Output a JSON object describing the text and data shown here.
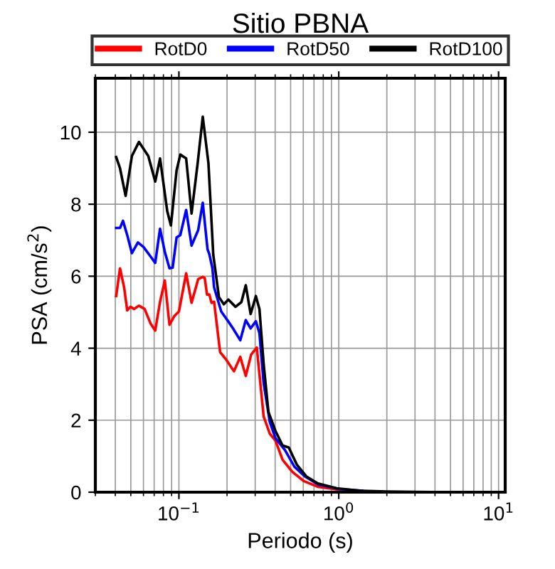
{
  "chart_data": {
    "type": "line",
    "title": "Sitio PBNA",
    "xlabel": "Periodo (s)",
    "ylabel": "PSA (cm/s$^{2}$)",
    "log": "x",
    "xlim": [
      0.03,
      11
    ],
    "ylim": [
      0,
      11.5
    ],
    "xticks": [
      {
        "value": 0.1,
        "label": "10$^{−1}$"
      },
      {
        "value": 1,
        "label": "10$^{0}$"
      },
      {
        "value": 10,
        "label": "10$^{1}$"
      }
    ],
    "yticks": [
      0,
      2,
      4,
      6,
      8,
      10
    ],
    "grid": true,
    "legend": "top",
    "line_style": "solid",
    "marker": "none",
    "series": [
      {
        "name": "RotD0",
        "color": "#ff0000",
        "x": [
          0.0405,
          0.0428,
          0.0454,
          0.0475,
          0.0497,
          0.0524,
          0.0562,
          0.061,
          0.0664,
          0.0711,
          0.0762,
          0.0816,
          0.0873,
          0.0935,
          0.1,
          0.111,
          0.12,
          0.132,
          0.141,
          0.145,
          0.15,
          0.155,
          0.16,
          0.166,
          0.181,
          0.197,
          0.221,
          0.242,
          0.262,
          0.283,
          0.307,
          0.339,
          0.37,
          0.402,
          0.445,
          0.511,
          0.604,
          0.74,
          1.0,
          1.4
        ],
        "values": [
          5.45,
          6.22,
          5.69,
          5.05,
          5.15,
          5.09,
          5.18,
          5.09,
          4.69,
          4.49,
          5.29,
          5.88,
          4.65,
          4.89,
          5.02,
          6.08,
          5.26,
          5.92,
          5.98,
          5.95,
          5.49,
          5.49,
          5.26,
          5.29,
          3.89,
          3.69,
          3.36,
          3.76,
          3.23,
          3.82,
          4.02,
          2.1,
          1.63,
          1.43,
          0.9,
          0.57,
          0.31,
          0.15,
          0.07,
          0.03
        ]
      },
      {
        "name": "RotD50",
        "color": "#0000ff",
        "x": [
          0.0405,
          0.0428,
          0.0447,
          0.0475,
          0.0508,
          0.0554,
          0.0601,
          0.0664,
          0.0711,
          0.0762,
          0.0816,
          0.0873,
          0.0914,
          0.0967,
          0.102,
          0.111,
          0.12,
          0.132,
          0.141,
          0.151,
          0.155,
          0.162,
          0.166,
          0.184,
          0.201,
          0.218,
          0.242,
          0.262,
          0.281,
          0.303,
          0.319,
          0.339,
          0.37,
          0.402,
          0.461,
          0.528,
          0.613,
          0.74,
          1.0,
          1.4
        ],
        "values": [
          7.34,
          7.34,
          7.54,
          7.14,
          6.64,
          6.94,
          6.81,
          6.55,
          6.37,
          7.32,
          6.68,
          6.22,
          6.24,
          7.08,
          7.14,
          7.84,
          6.85,
          7.28,
          8.04,
          6.75,
          6.61,
          6.22,
          5.69,
          5.02,
          4.78,
          4.55,
          4.22,
          4.78,
          4.55,
          4.75,
          4.42,
          3.03,
          1.96,
          1.5,
          1.17,
          0.71,
          0.44,
          0.22,
          0.09,
          0.04
        ]
      },
      {
        "name": "RotD100",
        "color": "#000000",
        "x": [
          0.0405,
          0.0428,
          0.0464,
          0.0508,
          0.0562,
          0.0643,
          0.0711,
          0.0762,
          0.0845,
          0.0891,
          0.0967,
          0.102,
          0.111,
          0.12,
          0.131,
          0.141,
          0.153,
          0.164,
          0.178,
          0.191,
          0.204,
          0.226,
          0.246,
          0.262,
          0.281,
          0.303,
          0.319,
          0.339,
          0.363,
          0.402,
          0.445,
          0.487,
          0.546,
          0.626,
          0.741,
          0.97,
          1.37,
          2.0,
          3.0,
          5.0,
          10.0
        ],
        "values": [
          9.31,
          9.0,
          8.23,
          9.34,
          9.73,
          9.34,
          8.63,
          9.27,
          7.81,
          7.41,
          8.94,
          9.38,
          9.27,
          7.74,
          9.14,
          10.43,
          9.14,
          6.6,
          5.42,
          5.22,
          5.35,
          5.15,
          5.28,
          5.75,
          4.95,
          5.45,
          5.09,
          3.56,
          2.23,
          1.7,
          1.3,
          1.24,
          0.77,
          0.44,
          0.24,
          0.11,
          0.04,
          0.02,
          0.01,
          0.0,
          0.0
        ]
      }
    ]
  }
}
